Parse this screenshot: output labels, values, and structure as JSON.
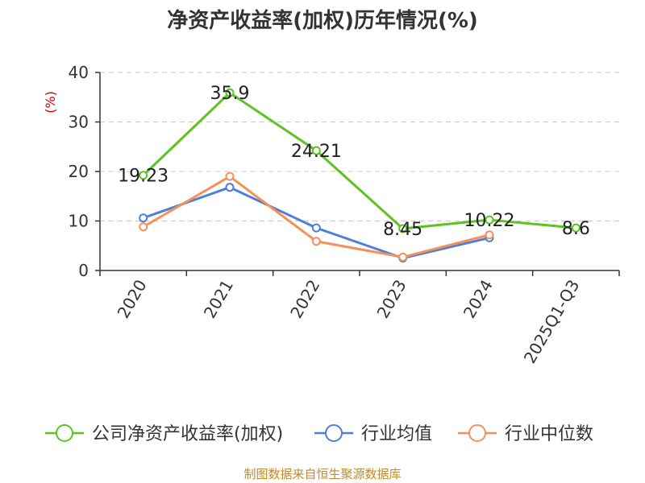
{
  "chart_data": {
    "type": "line",
    "title": "净资产收益率(加权)历年情况(%)",
    "ylabel": "(%)",
    "xlabel": "",
    "categories": [
      "2020",
      "2021",
      "2022",
      "2023",
      "2024",
      "2025Q1-Q3"
    ],
    "ylim": [
      0,
      40
    ],
    "yticks": [
      0,
      10,
      20,
      30,
      40
    ],
    "grid": true,
    "legend_position": "bottom",
    "series": [
      {
        "name": "公司净资产收益率(加权)",
        "color": "#5cc421",
        "values": [
          19.23,
          35.9,
          24.21,
          8.45,
          10.22,
          8.6
        ],
        "labels": [
          "19.23",
          "35.9",
          "24.21",
          "8.45",
          "10.22",
          "8.6"
        ]
      },
      {
        "name": "行业均值",
        "color": "#4e7fd8",
        "values": [
          10.6,
          16.8,
          8.6,
          2.5,
          6.6,
          null
        ]
      },
      {
        "name": "行业中位数",
        "color": "#f5905a",
        "values": [
          8.8,
          19.0,
          5.9,
          2.7,
          7.2,
          null
        ]
      }
    ],
    "source": "制图数据来自恒生聚源数据库"
  }
}
